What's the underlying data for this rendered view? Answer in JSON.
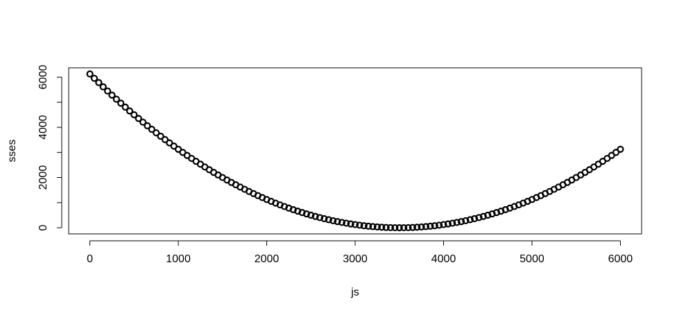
{
  "chart_data": {
    "type": "scatter",
    "xlabel": "js",
    "ylabel": "sses",
    "x": [
      0,
      50,
      100,
      150,
      200,
      250,
      300,
      350,
      400,
      450,
      500,
      550,
      600,
      650,
      700,
      750,
      800,
      850,
      900,
      950,
      1000,
      1050,
      1100,
      1150,
      1200,
      1250,
      1300,
      1350,
      1400,
      1450,
      1500,
      1550,
      1600,
      1650,
      1700,
      1750,
      1800,
      1850,
      1900,
      1950,
      2000,
      2050,
      2100,
      2150,
      2200,
      2250,
      2300,
      2350,
      2400,
      2450,
      2500,
      2550,
      2600,
      2650,
      2700,
      2750,
      2800,
      2850,
      2900,
      2950,
      3000,
      3050,
      3100,
      3150,
      3200,
      3250,
      3300,
      3350,
      3400,
      3450,
      3500,
      3550,
      3600,
      3650,
      3700,
      3750,
      3800,
      3850,
      3900,
      3950,
      4000,
      4050,
      4100,
      4150,
      4200,
      4250,
      4300,
      4350,
      4400,
      4450,
      4500,
      4550,
      4600,
      4650,
      4700,
      4750,
      4800,
      4850,
      4900,
      4950,
      5000,
      5050,
      5100,
      5150,
      5200,
      5250,
      5300,
      5350,
      5400,
      5450,
      5500,
      5550,
      5600,
      5650,
      5700,
      5750,
      5800,
      5850,
      5900,
      5950,
      6000
    ],
    "values": [
      6125,
      5951,
      5780,
      5611,
      5445,
      5281,
      5120,
      4961,
      4805,
      4651,
      4500,
      4351,
      4205,
      4061,
      3920,
      3781,
      3645,
      3511,
      3380,
      3251,
      3125,
      3001,
      2880,
      2761,
      2645,
      2531,
      2420,
      2311,
      2205,
      2101,
      2000,
      1901,
      1805,
      1711,
      1620,
      1531,
      1445,
      1361,
      1280,
      1201,
      1125,
      1051,
      980,
      911,
      845,
      781,
      720,
      661,
      605,
      551,
      500,
      451,
      405,
      361,
      320,
      281,
      245,
      211,
      180,
      151,
      125,
      101,
      80,
      61,
      45,
      31,
      20,
      11,
      5,
      1,
      0,
      1,
      5,
      11,
      20,
      31,
      45,
      61,
      80,
      101,
      125,
      151,
      180,
      211,
      245,
      281,
      320,
      361,
      405,
      451,
      500,
      551,
      605,
      661,
      720,
      781,
      845,
      911,
      980,
      1051,
      1125,
      1201,
      1280,
      1361,
      1445,
      1531,
      1620,
      1711,
      1805,
      1901,
      2000,
      2101,
      2205,
      2311,
      2420,
      2531,
      2645,
      2761,
      2880,
      3001,
      3125
    ],
    "color": "#000000",
    "xlim": [
      -240,
      6240
    ],
    "xticks": [
      0,
      1000,
      2000,
      3000,
      4000,
      5000,
      6000
    ],
    "ylim": [
      -245,
      6370
    ],
    "yticks": [
      0,
      2000,
      4000,
      6000
    ],
    "yminor_ticks": [
      1000,
      3000,
      5000
    ]
  }
}
